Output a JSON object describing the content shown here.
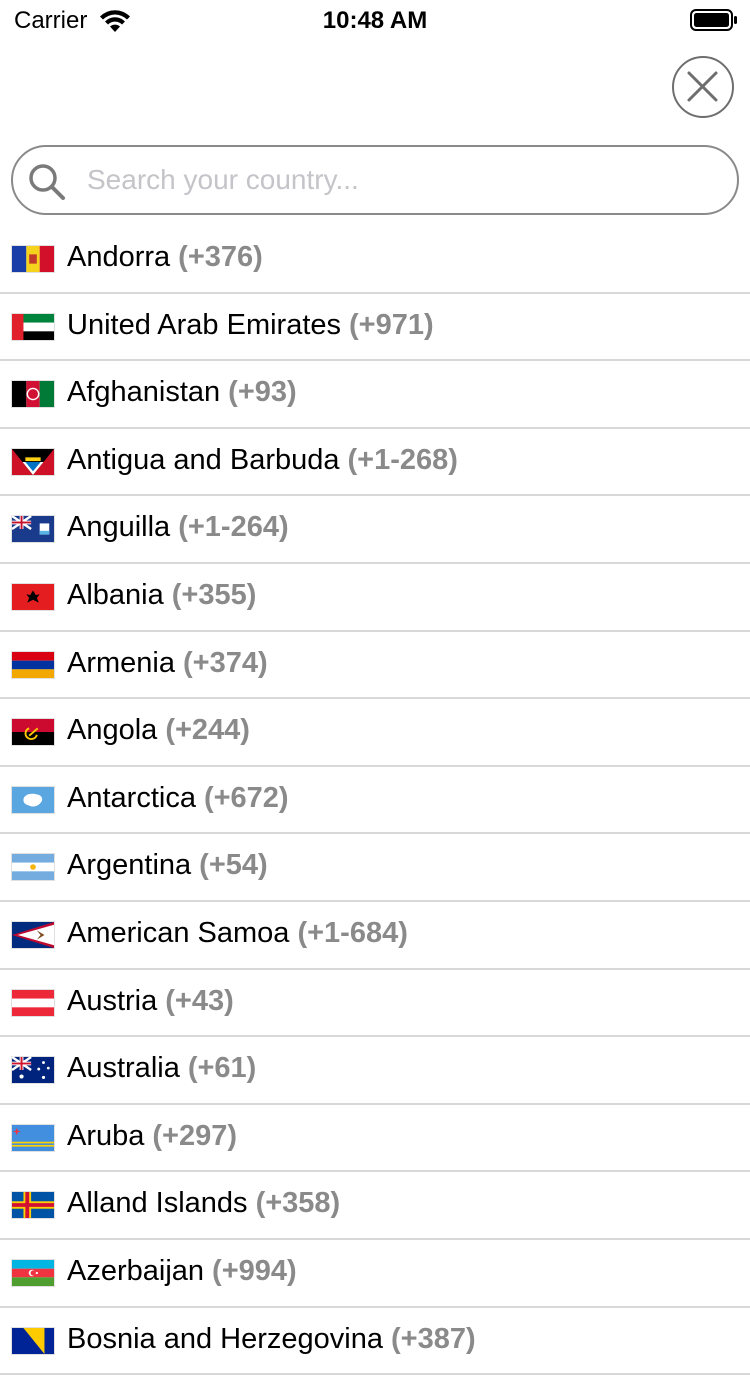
{
  "status_bar": {
    "carrier": "Carrier",
    "time": "10:48 AM",
    "wifi_icon": "wifi-icon",
    "battery_icon": "battery-icon"
  },
  "close_button": {
    "icon": "close-icon"
  },
  "search": {
    "placeholder": "Search your country...",
    "value": "",
    "icon": "search-icon"
  },
  "countries": [
    {
      "name": "Andorra",
      "code": "(+376)",
      "flag": "andorra-flag-icon"
    },
    {
      "name": "United Arab Emirates",
      "code": "(+971)",
      "flag": "uae-flag-icon"
    },
    {
      "name": "Afghanistan",
      "code": "(+93)",
      "flag": "afghanistan-flag-icon"
    },
    {
      "name": "Antigua and Barbuda",
      "code": "(+1-268)",
      "flag": "antigua-flag-icon"
    },
    {
      "name": "Anguilla",
      "code": "(+1-264)",
      "flag": "anguilla-flag-icon"
    },
    {
      "name": "Albania",
      "code": "(+355)",
      "flag": "albania-flag-icon"
    },
    {
      "name": "Armenia",
      "code": "(+374)",
      "flag": "armenia-flag-icon"
    },
    {
      "name": "Angola",
      "code": "(+244)",
      "flag": "angola-flag-icon"
    },
    {
      "name": "Antarctica",
      "code": "(+672)",
      "flag": "antarctica-flag-icon"
    },
    {
      "name": "Argentina",
      "code": "(+54)",
      "flag": "argentina-flag-icon"
    },
    {
      "name": "American Samoa",
      "code": "(+1-684)",
      "flag": "american-samoa-flag-icon"
    },
    {
      "name": "Austria",
      "code": "(+43)",
      "flag": "austria-flag-icon"
    },
    {
      "name": "Australia",
      "code": "(+61)",
      "flag": "australia-flag-icon"
    },
    {
      "name": "Aruba",
      "code": "(+297)",
      "flag": "aruba-flag-icon"
    },
    {
      "name": "Alland Islands",
      "code": "(+358)",
      "flag": "aland-flag-icon"
    },
    {
      "name": "Azerbaijan",
      "code": "(+994)",
      "flag": "azerbaijan-flag-icon"
    },
    {
      "name": "Bosnia and Herzegovina",
      "code": "(+387)",
      "flag": "bosnia-flag-icon"
    }
  ]
}
